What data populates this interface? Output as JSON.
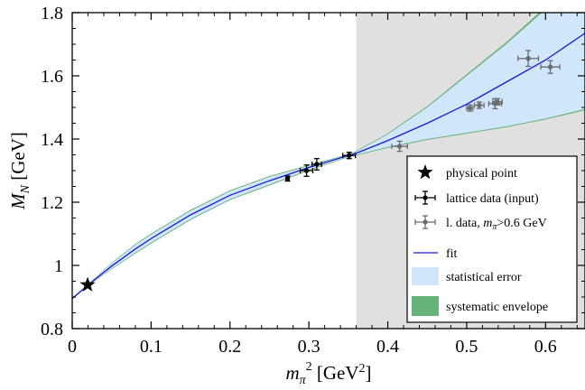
{
  "chart_data": {
    "type": "scatter",
    "xlabel": "mπ² [GeV²]",
    "ylabel": "M_N [GeV]",
    "xlim": [
      0,
      0.65
    ],
    "ylim": [
      0.8,
      1.8
    ],
    "x_ticks": [
      0,
      0.1,
      0.2,
      0.3,
      0.4,
      0.5,
      0.6
    ],
    "x_tick_labels": [
      "0",
      "0.1",
      "0.2",
      "0.3",
      "0.4",
      "0.5",
      "0.6"
    ],
    "y_ticks": [
      0.8,
      1.0,
      1.2,
      1.4,
      1.6,
      1.8
    ],
    "y_tick_labels": [
      "0.8",
      "1",
      "1.2",
      "1.4",
      "1.6",
      "1.8"
    ],
    "shaded_region_x": [
      0.36,
      0.65
    ],
    "legend_position": "right",
    "legend": [
      {
        "key": "physical",
        "label": "physical point"
      },
      {
        "key": "lattice",
        "label": "lattice data (input)"
      },
      {
        "key": "ldata",
        "label": "l. data, mπ>0.6 GeV"
      },
      {
        "key": "fit",
        "label": "fit"
      },
      {
        "key": "stat",
        "label": "statistical error"
      },
      {
        "key": "syst",
        "label": "systematic envelope"
      }
    ],
    "physical_point": {
      "x": 0.0195,
      "y": 0.9383
    },
    "lattice_data_input": [
      {
        "x": 0.273,
        "y": 1.275,
        "xerr": 0.002,
        "yerr": 0.008
      },
      {
        "x": 0.297,
        "y": 1.3,
        "xerr": 0.008,
        "yerr": 0.018
      },
      {
        "x": 0.31,
        "y": 1.32,
        "xerr": 0.006,
        "yerr": 0.018
      },
      {
        "x": 0.351,
        "y": 1.348,
        "xerr": 0.008,
        "yerr": 0.01
      }
    ],
    "lattice_data_heavy": [
      {
        "x": 0.415,
        "y": 1.377,
        "xerr": 0.01,
        "yerr": 0.016
      },
      {
        "x": 0.504,
        "y": 1.498,
        "xerr": 0.004,
        "yerr": 0.01
      },
      {
        "x": 0.516,
        "y": 1.507,
        "xerr": 0.006,
        "yerr": 0.01
      },
      {
        "x": 0.536,
        "y": 1.512,
        "xerr": 0.008,
        "yerr": 0.016
      },
      {
        "x": 0.539,
        "y": 1.518,
        "xerr": 0.006,
        "yerr": 0.01
      },
      {
        "x": 0.578,
        "y": 1.655,
        "xerr": 0.013,
        "yerr": 0.025
      },
      {
        "x": 0.606,
        "y": 1.628,
        "xerr": 0.012,
        "yerr": 0.02
      }
    ],
    "fit_curve": {
      "x": [
        0,
        0.02,
        0.05,
        0.08,
        0.1,
        0.15,
        0.2,
        0.25,
        0.3,
        0.35,
        0.36,
        0.4,
        0.45,
        0.5,
        0.55,
        0.6,
        0.65
      ],
      "y": [
        0.895,
        0.938,
        0.998,
        1.052,
        1.085,
        1.16,
        1.222,
        1.268,
        1.31,
        1.348,
        1.355,
        1.395,
        1.45,
        1.51,
        1.58,
        1.65,
        1.735
      ]
    },
    "statistical_band": {
      "x": [
        0,
        0.02,
        0.05,
        0.08,
        0.1,
        0.15,
        0.2,
        0.25,
        0.3,
        0.35,
        0.36,
        0.4,
        0.45,
        0.5,
        0.55,
        0.6,
        0.65
      ],
      "upper": [
        0.897,
        0.94,
        1.007,
        1.065,
        1.098,
        1.173,
        1.235,
        1.28,
        1.315,
        1.35,
        1.36,
        1.415,
        1.5,
        1.6,
        1.7,
        1.81,
        1.93
      ],
      "lower": [
        0.893,
        0.936,
        0.99,
        1.04,
        1.072,
        1.147,
        1.21,
        1.256,
        1.303,
        1.345,
        1.35,
        1.375,
        1.4,
        1.42,
        1.44,
        1.465,
        1.495
      ]
    },
    "systematic_envelope": {
      "x": [
        0,
        0.02,
        0.05,
        0.08,
        0.1,
        0.15,
        0.2,
        0.25,
        0.3,
        0.35,
        0.36,
        0.4,
        0.45,
        0.5,
        0.55,
        0.6,
        0.65
      ],
      "upper": [
        0.898,
        0.941,
        1.009,
        1.068,
        1.101,
        1.176,
        1.238,
        1.283,
        1.318,
        1.352,
        1.362,
        1.418,
        1.504,
        1.605,
        1.706,
        1.818,
        1.94
      ],
      "lower": [
        0.892,
        0.935,
        0.988,
        1.037,
        1.069,
        1.144,
        1.207,
        1.253,
        1.3,
        1.343,
        1.348,
        1.372,
        1.397,
        1.417,
        1.437,
        1.462,
        1.491
      ]
    },
    "colors": {
      "shade": "#e0e0e0",
      "stat_band": "#cfe6fb",
      "syst_band": "#66b27a",
      "fit_line": "#1a1ad4",
      "heavy_points": "#6b6b6b",
      "points": "#000000"
    }
  }
}
